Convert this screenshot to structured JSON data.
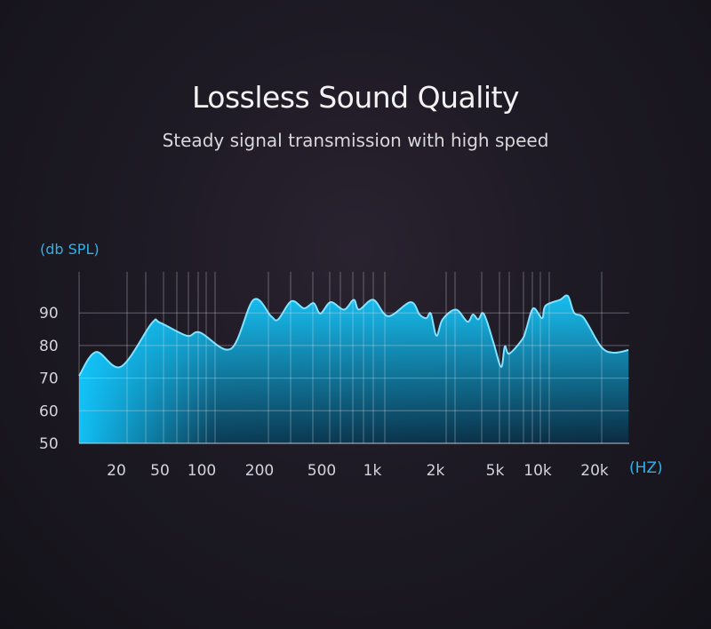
{
  "header": {
    "title": "Lossless Sound Quality",
    "subtitle": "Steady signal transmission with high speed"
  },
  "chart_data": {
    "type": "area",
    "title": "",
    "ylabel": "(db SPL)",
    "xlabel": "(HZ)",
    "xscale": "log",
    "ylim": [
      50,
      100
    ],
    "y_ticks": [
      "50",
      "60",
      "70",
      "80",
      "90"
    ],
    "x_ticks": [
      {
        "label": "20",
        "value": 20
      },
      {
        "label": "50",
        "value": 50
      },
      {
        "label": "100",
        "value": 100
      },
      {
        "label": "200",
        "value": 200
      },
      {
        "label": "500",
        "value": 500
      },
      {
        "label": "1k",
        "value": 1000
      },
      {
        "label": "2k",
        "value": 2000
      },
      {
        "label": "5k",
        "value": 5000
      },
      {
        "label": "10k",
        "value": 10000
      },
      {
        "label": "20k",
        "value": 20000
      }
    ],
    "grid": true,
    "colors": {
      "line": "#7fe3ff",
      "fill_top": "#18c2f4",
      "fill_bottom": "#0b2a44",
      "accent": "#2bb3ea"
    },
    "series": [
      {
        "x": [
          9,
          13,
          22,
          42,
          50,
          78,
          97,
          142,
          186,
          237,
          263,
          320,
          385,
          444,
          490,
          565,
          678,
          775,
          833,
          1010,
          1190,
          1520,
          1680,
          1810,
          1900,
          2030,
          2230,
          2740,
          3270,
          3560,
          3860,
          4130,
          4420,
          4930,
          5530,
          5860,
          6300,
          7820,
          8300,
          9300,
          10550,
          11000,
          13100,
          14450,
          15600,
          17570,
          21600,
          25100,
          30200
        ],
        "y": [
          70.7,
          78,
          73.5,
          86.8,
          87,
          83,
          84,
          79,
          94,
          89,
          88,
          93.6,
          91.4,
          93,
          89.8,
          93.3,
          91,
          94,
          91,
          94,
          89,
          93.3,
          89.5,
          88.4,
          89.8,
          83,
          88,
          91,
          87.3,
          89.5,
          88,
          90,
          87.3,
          80.2,
          73.4,
          79.7,
          77.5,
          82,
          85,
          91.4,
          88.4,
          92.2,
          94,
          95.2,
          90,
          88.4,
          79.7,
          77.8,
          78.6
        ]
      }
    ]
  }
}
